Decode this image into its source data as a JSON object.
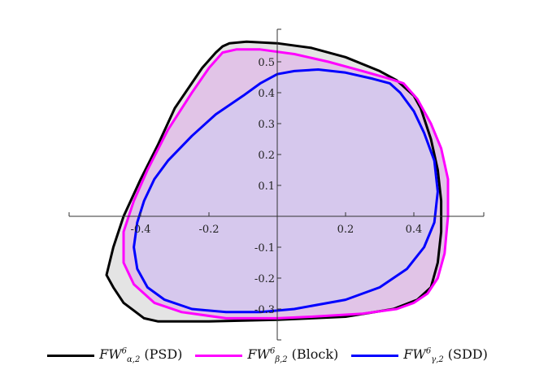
{
  "chart_data": {
    "type": "area",
    "xlim": [
      -0.6,
      0.6
    ],
    "ylim": [
      -0.35,
      0.55
    ],
    "x_ticks": [
      {
        "value": -0.4,
        "label": "-0.4"
      },
      {
        "value": -0.2,
        "label": "-0.2"
      },
      {
        "value": 0.2,
        "label": "0.2"
      },
      {
        "value": 0.4,
        "label": "0.4"
      }
    ],
    "y_ticks": [
      {
        "value": 0.5,
        "label": "0.5"
      },
      {
        "value": 0.4,
        "label": "0.4"
      },
      {
        "value": 0.3,
        "label": "0.3"
      },
      {
        "value": 0.2,
        "label": "0.2"
      },
      {
        "value": 0.1,
        "label": "0.1"
      },
      {
        "value": -0.1,
        "label": "-0.1"
      },
      {
        "value": -0.2,
        "label": "-0.2"
      },
      {
        "value": -0.3,
        "label": "-0.3"
      }
    ],
    "legend_position": "bottom",
    "series": [
      {
        "name": "FW^6_{α,2} (PSD)",
        "color": "#000000",
        "fill": "#e4e4e4",
        "points": [
          [
            -0.16,
            0.55
          ],
          [
            -0.14,
            0.56
          ],
          [
            -0.09,
            0.565
          ],
          [
            0.0,
            0.56
          ],
          [
            0.1,
            0.545
          ],
          [
            0.2,
            0.515
          ],
          [
            0.3,
            0.47
          ],
          [
            0.35,
            0.44
          ],
          [
            0.4,
            0.39
          ],
          [
            0.42,
            0.35
          ],
          [
            0.45,
            0.25
          ],
          [
            0.47,
            0.15
          ],
          [
            0.48,
            0.05
          ],
          [
            0.48,
            -0.05
          ],
          [
            0.47,
            -0.15
          ],
          [
            0.45,
            -0.23
          ],
          [
            0.41,
            -0.27
          ],
          [
            0.34,
            -0.3
          ],
          [
            0.2,
            -0.325
          ],
          [
            0.0,
            -0.335
          ],
          [
            -0.2,
            -0.34
          ],
          [
            -0.35,
            -0.34
          ],
          [
            -0.39,
            -0.33
          ],
          [
            -0.45,
            -0.28
          ],
          [
            -0.48,
            -0.23
          ],
          [
            -0.5,
            -0.19
          ],
          [
            -0.48,
            -0.1
          ],
          [
            -0.45,
            0.0
          ],
          [
            -0.4,
            0.12
          ],
          [
            -0.35,
            0.23
          ],
          [
            -0.3,
            0.35
          ],
          [
            -0.22,
            0.48
          ],
          [
            -0.18,
            0.53
          ],
          [
            -0.16,
            0.55
          ]
        ]
      },
      {
        "name": "FW^6_{β,2} (Block)",
        "color": "#ff00ff",
        "fill": "#e1c4e7",
        "points": [
          [
            -0.16,
            0.53
          ],
          [
            -0.12,
            0.54
          ],
          [
            -0.05,
            0.54
          ],
          [
            0.05,
            0.525
          ],
          [
            0.15,
            0.5
          ],
          [
            0.25,
            0.47
          ],
          [
            0.33,
            0.445
          ],
          [
            0.37,
            0.43
          ],
          [
            0.41,
            0.38
          ],
          [
            0.45,
            0.3
          ],
          [
            0.48,
            0.22
          ],
          [
            0.5,
            0.12
          ],
          [
            0.5,
            0.0
          ],
          [
            0.49,
            -0.12
          ],
          [
            0.47,
            -0.2
          ],
          [
            0.44,
            -0.25
          ],
          [
            0.4,
            -0.28
          ],
          [
            0.35,
            -0.3
          ],
          [
            0.25,
            -0.315
          ],
          [
            0.1,
            -0.325
          ],
          [
            0.0,
            -0.33
          ],
          [
            -0.15,
            -0.33
          ],
          [
            -0.28,
            -0.31
          ],
          [
            -0.36,
            -0.28
          ],
          [
            -0.42,
            -0.22
          ],
          [
            -0.45,
            -0.15
          ],
          [
            -0.45,
            -0.05
          ],
          [
            -0.42,
            0.05
          ],
          [
            -0.38,
            0.15
          ],
          [
            -0.32,
            0.28
          ],
          [
            -0.25,
            0.4
          ],
          [
            -0.2,
            0.48
          ],
          [
            -0.16,
            0.53
          ]
        ]
      },
      {
        "name": "FW^6_{γ,2} (SDD)",
        "color": "#0000ff",
        "fill": "#d6c8ed",
        "points": [
          [
            0.0,
            0.46
          ],
          [
            0.05,
            0.47
          ],
          [
            0.12,
            0.475
          ],
          [
            0.2,
            0.465
          ],
          [
            0.28,
            0.445
          ],
          [
            0.33,
            0.43
          ],
          [
            0.36,
            0.4
          ],
          [
            0.4,
            0.34
          ],
          [
            0.43,
            0.27
          ],
          [
            0.46,
            0.18
          ],
          [
            0.47,
            0.08
          ],
          [
            0.46,
            -0.02
          ],
          [
            0.43,
            -0.1
          ],
          [
            0.38,
            -0.17
          ],
          [
            0.3,
            -0.23
          ],
          [
            0.2,
            -0.27
          ],
          [
            0.05,
            -0.3
          ],
          [
            -0.05,
            -0.31
          ],
          [
            -0.15,
            -0.31
          ],
          [
            -0.25,
            -0.3
          ],
          [
            -0.33,
            -0.27
          ],
          [
            -0.38,
            -0.23
          ],
          [
            -0.41,
            -0.17
          ],
          [
            -0.42,
            -0.1
          ],
          [
            -0.41,
            -0.02
          ],
          [
            -0.39,
            0.05
          ],
          [
            -0.36,
            0.12
          ],
          [
            -0.32,
            0.18
          ],
          [
            -0.25,
            0.26
          ],
          [
            -0.18,
            0.33
          ],
          [
            -0.1,
            0.39
          ],
          [
            -0.05,
            0.43
          ],
          [
            0.0,
            0.46
          ]
        ]
      }
    ]
  },
  "legend": {
    "items": [
      {
        "symbol": "FW",
        "sup": "6",
        "sub": "α,2",
        "tag": "(PSD)"
      },
      {
        "symbol": "FW",
        "sup": "6",
        "sub": "β,2",
        "tag": "(Block)"
      },
      {
        "symbol": "FW",
        "sup": "6",
        "sub": "γ,2",
        "tag": "(SDD)"
      }
    ]
  }
}
